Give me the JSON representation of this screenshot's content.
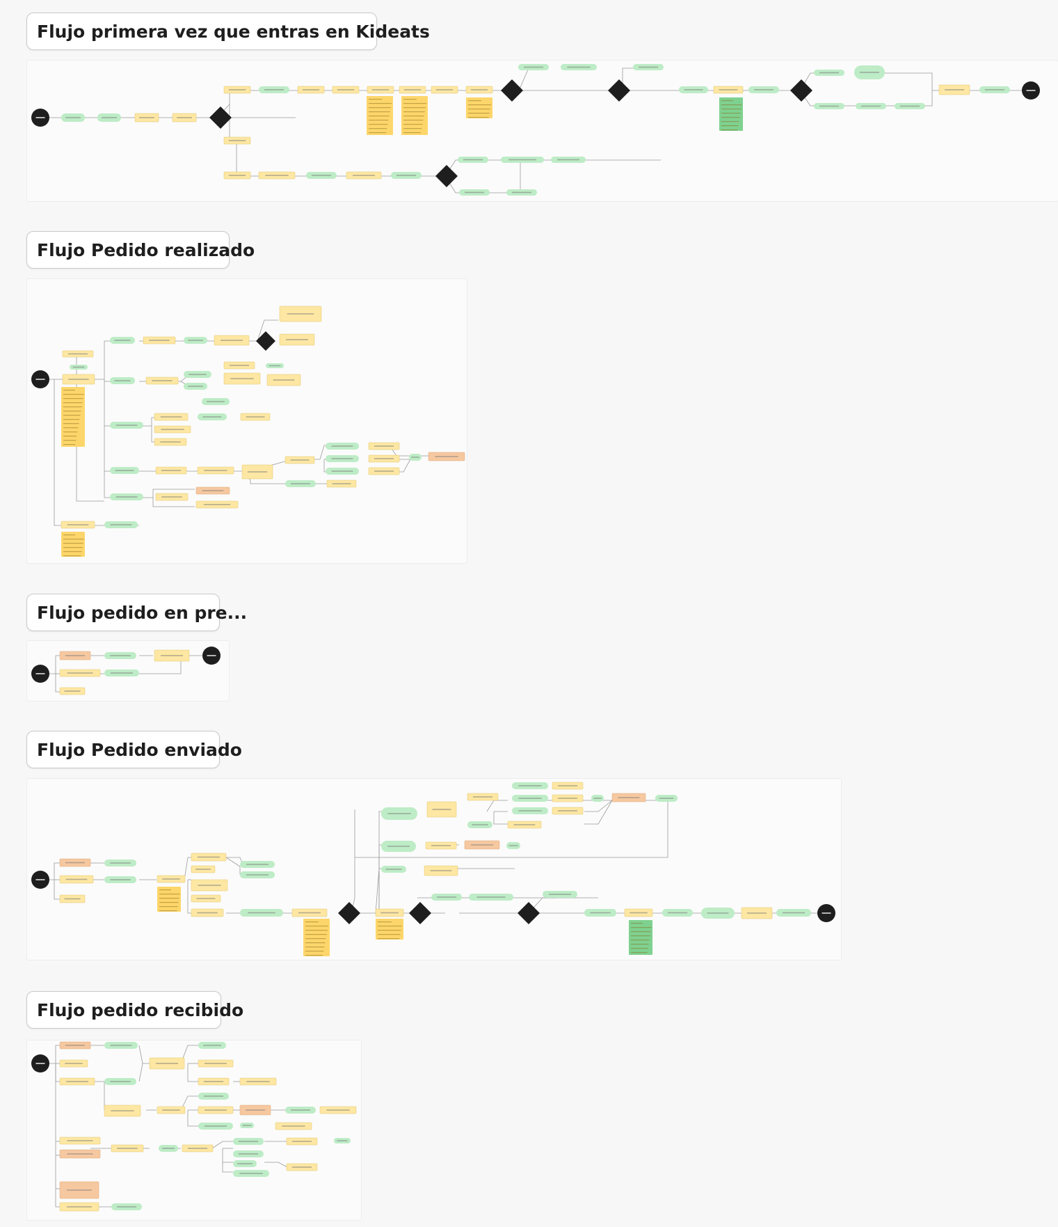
{
  "colors": {
    "background": "#f7f7f7",
    "frame": "#fbfbfb",
    "green_node": "#bdecc6",
    "yellow_node": "#fde7a3",
    "yellow_note": "#fdd66b",
    "orange_node": "#f6c8a0",
    "dark_node": "#1e1e1e",
    "line": "#9a9a9a"
  },
  "sections": [
    {
      "title": "Flujo primera vez que entras en Kideats"
    },
    {
      "title": "Flujo Pedido realizado"
    },
    {
      "title": "Flujo pedido en pre..."
    },
    {
      "title": "Flujo Pedido enviado"
    },
    {
      "title": "Flujo pedido recibido"
    }
  ]
}
